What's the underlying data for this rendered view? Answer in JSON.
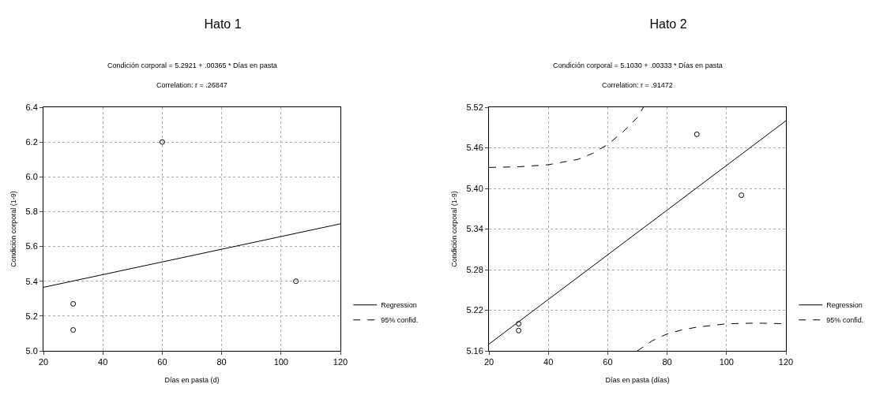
{
  "chart_data": [
    {
      "type": "scatter",
      "title": "Hato 1",
      "subtitle": "Condición corporal = 5.2921 + .00365 * Días en pasta",
      "annotations": [
        "Correlation: r = .26847"
      ],
      "xlabel": "Días en pasta (d)",
      "ylabel": "Condición corporal (1-9)",
      "xlim": [
        20,
        120
      ],
      "xticks": [
        20,
        40,
        60,
        80,
        100,
        120
      ],
      "ylim": [
        5.0,
        6.4
      ],
      "yticks": [
        {
          "value": 5.0,
          "label": "5.0"
        },
        5.2,
        5.4,
        5.6,
        5.8,
        {
          "value": 6.0,
          "label": "6.0"
        },
        6.2,
        6.4
      ],
      "grid": true,
      "legend": "bottom right",
      "series": [
        {
          "marker": "circle",
          "color": "#000000",
          "x": [
            30,
            30,
            60,
            105
          ],
          "values": [
            5.27,
            5.12,
            6.2,
            5.4
          ]
        },
        {
          "type": "line",
          "name": "Regression",
          "color": "#000000",
          "line_style": "solid",
          "marker": "none",
          "x": [
            20,
            120
          ],
          "values": [
            5.365,
            5.73
          ]
        },
        {
          "type": "line",
          "name": "95% confid.",
          "color": "#000000",
          "line_style": "dashed",
          "marker": "none",
          "values": [
            null
          ]
        }
      ]
    },
    {
      "type": "scatter",
      "title": "Hato 2",
      "subtitle": "Condición corporal = 5.1030 + .00333 * Días en pasta",
      "annotations": [
        "Correlation: r = .91472"
      ],
      "xlabel": "Días en pasta (días)",
      "ylabel": "Condición corporal (1-9)",
      "xlim": [
        20,
        120
      ],
      "xticks": [
        20,
        40,
        60,
        80,
        100,
        120
      ],
      "ylim": [
        5.16,
        5.52
      ],
      "yticks": [
        5.16,
        5.22,
        5.28,
        5.34,
        {
          "value": 5.4,
          "label": "5.40"
        },
        5.46,
        5.52
      ],
      "grid": true,
      "legend": "bottom right",
      "series": [
        {
          "marker": "circle",
          "color": "#000000",
          "x": [
            30,
            30,
            90,
            105
          ],
          "values": [
            5.2,
            5.19,
            5.48,
            5.39
          ]
        },
        {
          "type": "line",
          "name": "Regression",
          "color": "#000000",
          "line_style": "solid",
          "marker": "none",
          "x": [
            20,
            120
          ],
          "values": [
            5.17,
            5.5
          ]
        },
        {
          "type": "line",
          "name": "95% confid.",
          "color": "#000000",
          "line_style": "dashed",
          "marker": "none",
          "x": [
            20,
            30,
            40,
            50,
            55,
            60,
            65,
            70,
            72
          ],
          "values": [
            5.431,
            5.432,
            5.435,
            5.443,
            5.452,
            5.465,
            5.483,
            5.505,
            5.52
          ]
        },
        {
          "type": "line",
          "color": "#000000",
          "line_style": "dashed",
          "marker": "none",
          "x": [
            70,
            75,
            80,
            85,
            90,
            100,
            110,
            120
          ],
          "values": [
            5.16,
            5.175,
            5.185,
            5.191,
            5.195,
            5.2,
            5.201,
            5.2
          ]
        }
      ]
    }
  ]
}
